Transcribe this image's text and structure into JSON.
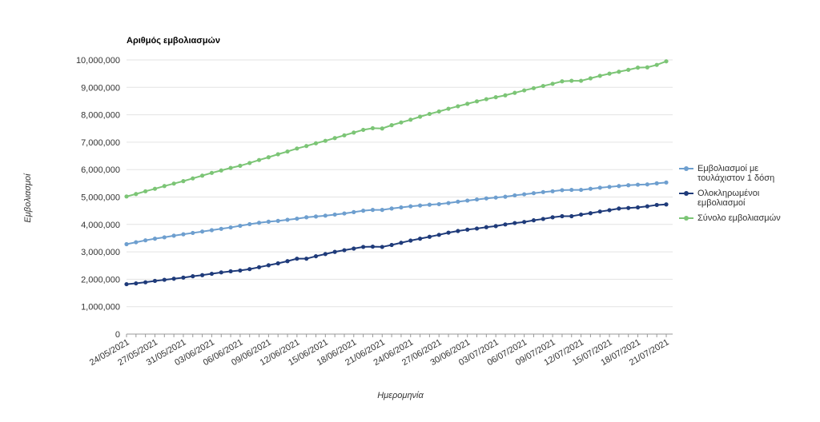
{
  "chart_data": {
    "type": "line",
    "title": "Αριθμός εμβολιασμών",
    "y_label": "Εμβολιασμοί",
    "x_label": "Ημερομηνία",
    "categories": [
      "24/05/2021",
      null,
      null,
      "27/05/2021",
      null,
      null,
      "31/05/2021",
      null,
      null,
      "03/06/2021",
      null,
      null,
      "06/06/2021",
      null,
      null,
      "09/06/2021",
      null,
      null,
      "12/06/2021",
      null,
      null,
      "15/06/2021",
      null,
      null,
      "18/06/2021",
      null,
      null,
      "21/06/2021",
      null,
      null,
      "24/06/2021",
      null,
      null,
      "27/06/2021",
      null,
      null,
      "30/06/2021",
      null,
      null,
      "03/07/2021",
      null,
      null,
      "06/07/2021",
      null,
      null,
      "09/07/2021",
      null,
      null,
      "12/07/2021",
      null,
      null,
      "15/07/2021",
      null,
      null,
      "18/07/2021",
      null,
      null,
      "21/07/2021"
    ],
    "series": [
      {
        "name": "Εμβολιασμοί με τουλάχιστον 1 δόση",
        "color": "#6e9fcf",
        "values": [
          3280000,
          3350000,
          3420000,
          3480000,
          3530000,
          3590000,
          3640000,
          3690000,
          3740000,
          3790000,
          3840000,
          3890000,
          3950000,
          4010000,
          4060000,
          4100000,
          4130000,
          4170000,
          4210000,
          4260000,
          4290000,
          4320000,
          4360000,
          4400000,
          4450000,
          4500000,
          4530000,
          4530000,
          4580000,
          4620000,
          4660000,
          4690000,
          4720000,
          4740000,
          4780000,
          4830000,
          4870000,
          4910000,
          4950000,
          4980000,
          5010000,
          5060000,
          5100000,
          5140000,
          5180000,
          5210000,
          5250000,
          5260000,
          5260000,
          5300000,
          5340000,
          5370000,
          5400000,
          5430000,
          5450000,
          5460000,
          5500000,
          5530000
        ]
      },
      {
        "name": "Ολοκληρωμένοι εμβολιασμοί",
        "color": "#1f3b7a",
        "values": [
          1820000,
          1850000,
          1890000,
          1940000,
          1980000,
          2020000,
          2060000,
          2110000,
          2150000,
          2200000,
          2250000,
          2290000,
          2320000,
          2370000,
          2440000,
          2510000,
          2580000,
          2660000,
          2750000,
          2750000,
          2840000,
          2920000,
          3000000,
          3060000,
          3120000,
          3180000,
          3190000,
          3180000,
          3250000,
          3330000,
          3410000,
          3480000,
          3550000,
          3620000,
          3700000,
          3760000,
          3810000,
          3850000,
          3900000,
          3940000,
          4000000,
          4050000,
          4090000,
          4150000,
          4200000,
          4260000,
          4300000,
          4300000,
          4360000,
          4410000,
          4470000,
          4520000,
          4580000,
          4600000,
          4620000,
          4660000,
          4710000,
          4730000
        ]
      },
      {
        "name": "Σύνολο εμβολιασμών",
        "color": "#7cc576",
        "values": [
          5020000,
          5110000,
          5210000,
          5300000,
          5400000,
          5490000,
          5580000,
          5680000,
          5780000,
          5880000,
          5970000,
          6060000,
          6140000,
          6240000,
          6350000,
          6450000,
          6560000,
          6660000,
          6770000,
          6860000,
          6960000,
          7050000,
          7150000,
          7250000,
          7350000,
          7450000,
          7510000,
          7500000,
          7620000,
          7720000,
          7820000,
          7930000,
          8030000,
          8120000,
          8220000,
          8310000,
          8400000,
          8490000,
          8570000,
          8640000,
          8710000,
          8800000,
          8890000,
          8970000,
          9050000,
          9130000,
          9220000,
          9240000,
          9240000,
          9330000,
          9420000,
          9500000,
          9570000,
          9640000,
          9720000,
          9730000,
          9820000,
          9950000
        ]
      }
    ],
    "ylim": [
      0,
      10000000
    ],
    "yticks": [
      0,
      {
        "value": 1000000,
        "label": "1,000,000"
      },
      {
        "value": 2000000,
        "label": "2,000,000"
      },
      {
        "value": 3000000,
        "label": "3,000,000"
      },
      {
        "value": 4000000,
        "label": "4,000,000"
      },
      {
        "value": 5000000,
        "label": "5,000,000"
      },
      {
        "value": 6000000,
        "label": "6,000,000"
      },
      {
        "value": 7000000,
        "label": "7,000,000"
      },
      {
        "value": 8000000,
        "label": "8,000,000"
      },
      {
        "value": 9000000,
        "label": "9,000,000"
      },
      {
        "value": 10000000,
        "label": "10,000,000"
      }
    ],
    "grid": true,
    "legend": "right"
  }
}
